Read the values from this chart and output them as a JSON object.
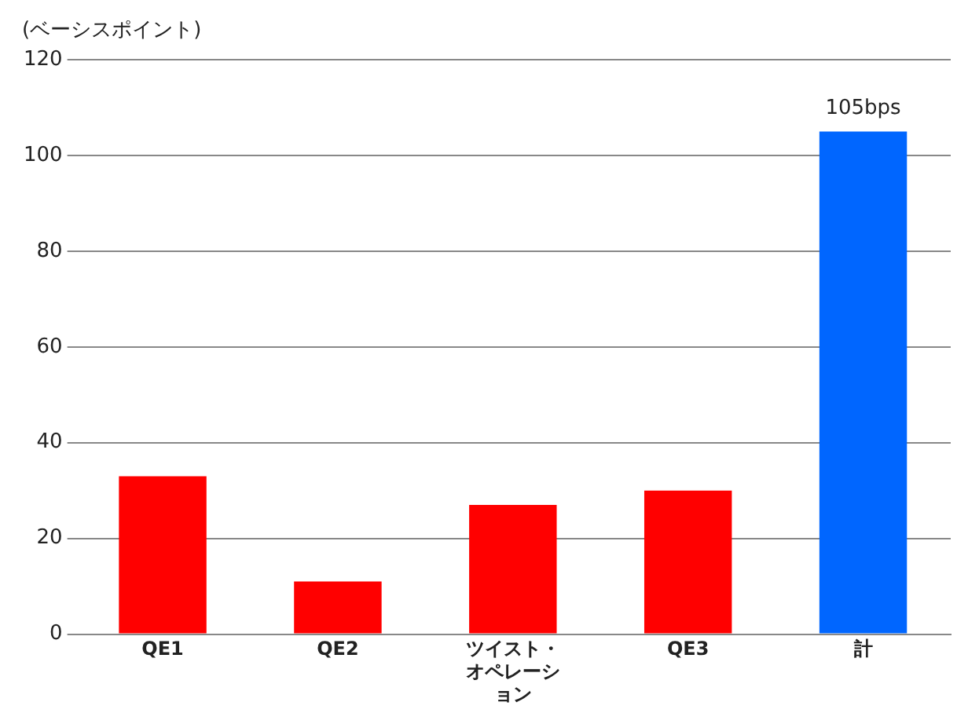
{
  "chart_data": {
    "type": "bar",
    "ylabel": "(ベーシスポイント)",
    "categories": [
      "QE1",
      "QE2",
      "ツイスト・オペレーション",
      "QE3",
      "計"
    ],
    "values": [
      33,
      11,
      27,
      30,
      105
    ],
    "colors": [
      "#ff0000",
      "#ff0000",
      "#ff0000",
      "#ff0000",
      "#0066ff"
    ],
    "value_labels": [
      null,
      null,
      null,
      null,
      "105bps"
    ],
    "ylim": [
      0,
      120
    ],
    "yticks": [
      0,
      20,
      40,
      60,
      80,
      100,
      120
    ],
    "grid": "y",
    "legend": false
  }
}
